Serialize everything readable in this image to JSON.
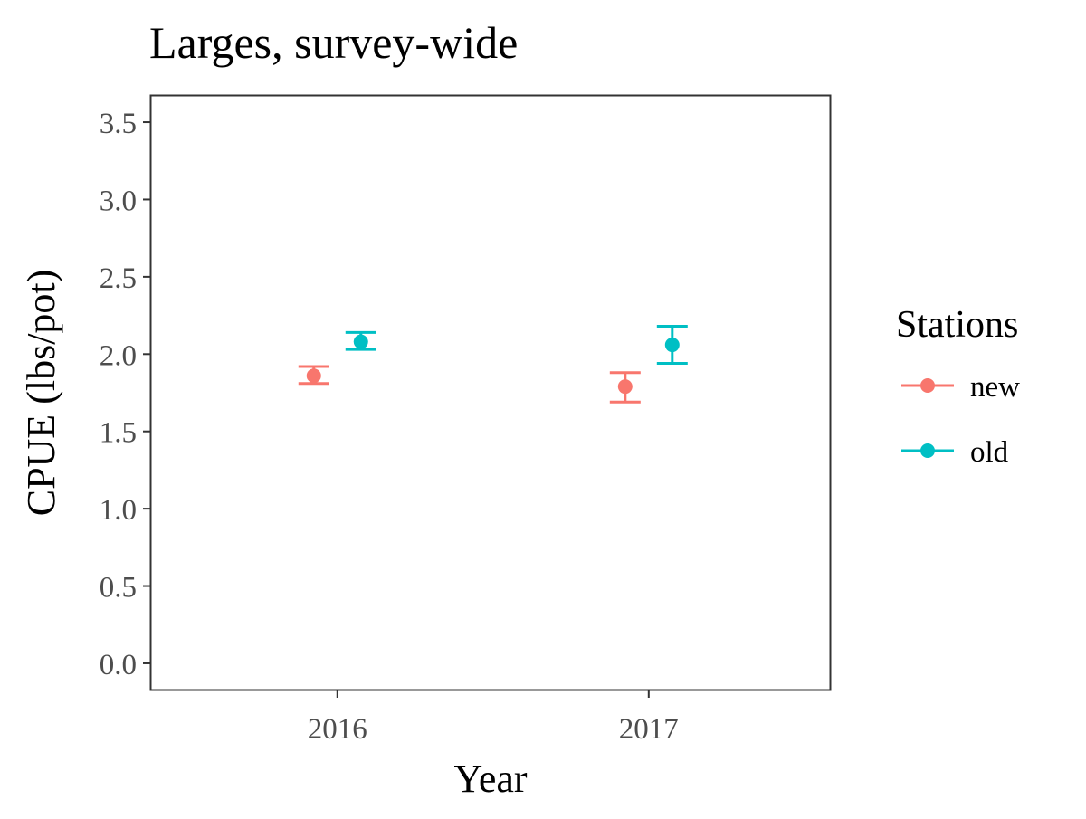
{
  "chart_data": {
    "type": "scatter",
    "title": "Larges, survey-wide",
    "xlabel": "Year",
    "ylabel": "CPUE (lbs/pot)",
    "categories": [
      "2016",
      "2017"
    ],
    "ylim": [
      -0.17,
      3.67
    ],
    "yticks": [
      "0.0",
      "0.5",
      "1.0",
      "1.5",
      "2.0",
      "2.5",
      "3.0",
      "3.5"
    ],
    "grid": false,
    "legend": {
      "title": "Stations",
      "placement": "right"
    },
    "series": [
      {
        "name": "new",
        "color": "#F8766D",
        "values": [
          1.86,
          1.79
        ],
        "lower": [
          1.81,
          1.69
        ],
        "upper": [
          1.92,
          1.88
        ]
      },
      {
        "name": "old",
        "color": "#00BFC4",
        "values": [
          2.08,
          2.06
        ],
        "lower": [
          2.03,
          1.94
        ],
        "upper": [
          2.14,
          2.18
        ]
      }
    ]
  }
}
